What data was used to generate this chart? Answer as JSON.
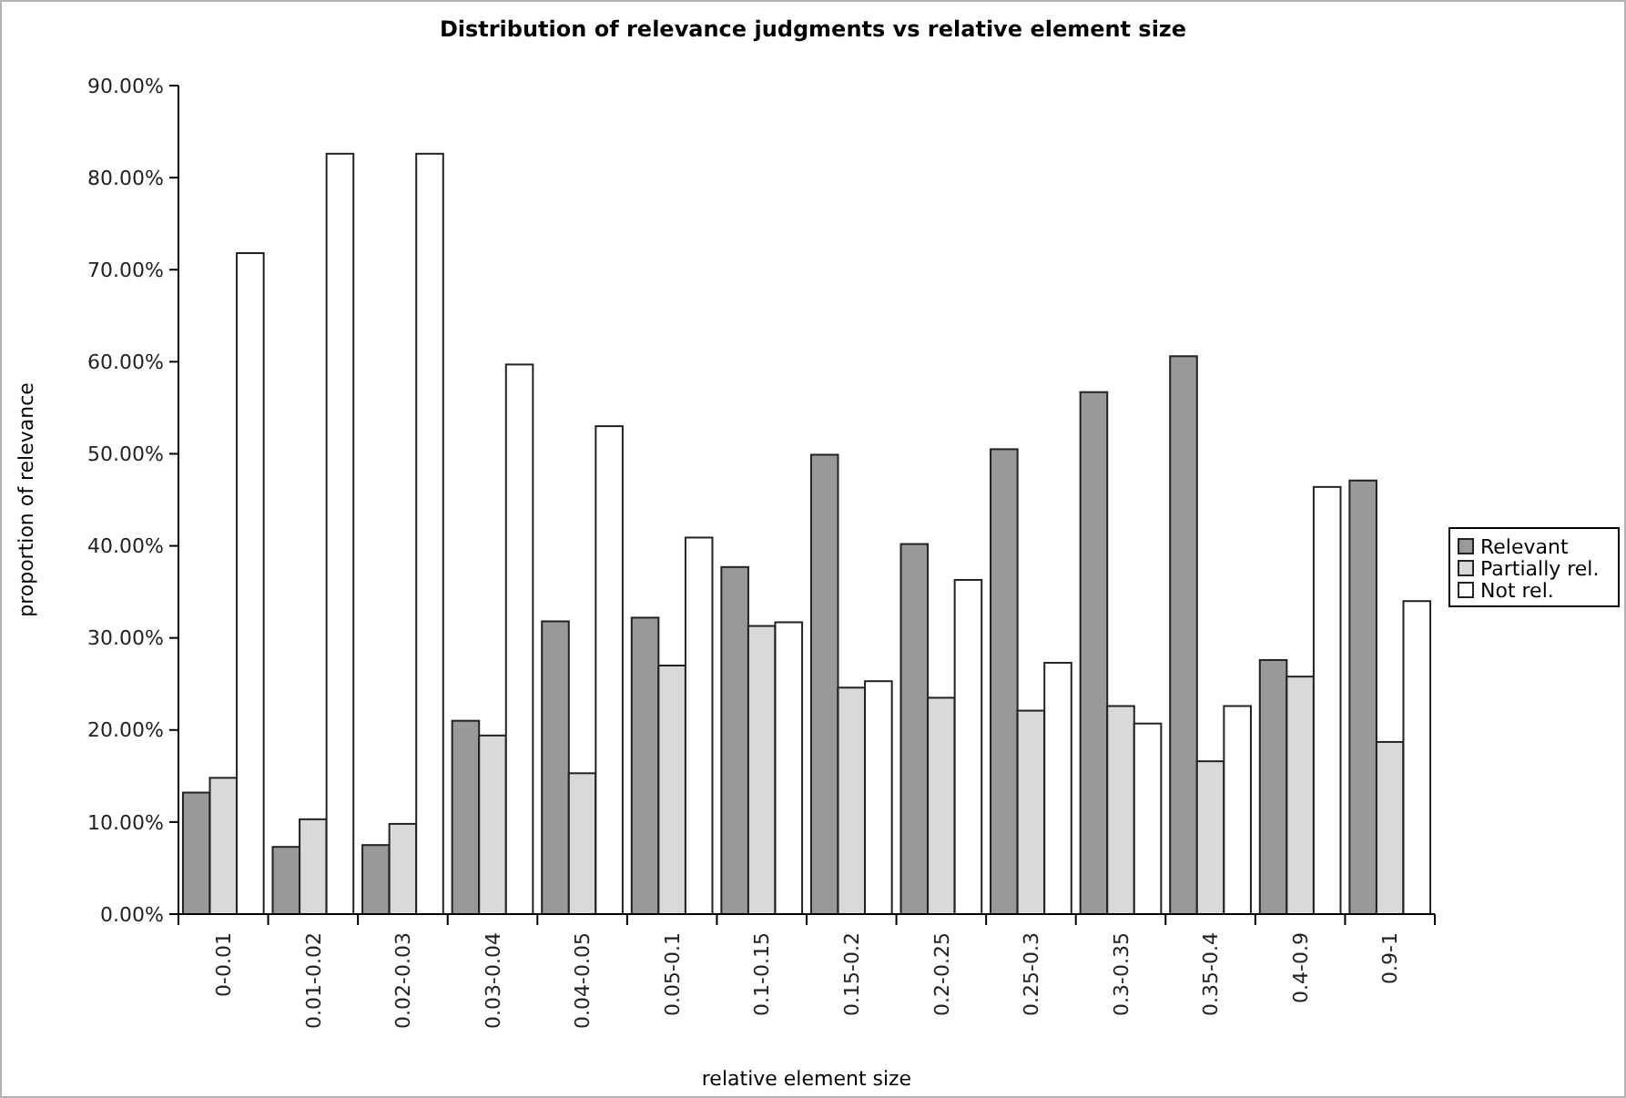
{
  "chart_data": {
    "type": "bar",
    "title": "Distribution of relevance judgments vs relative element size",
    "xlabel": "relative element size",
    "ylabel": "proportion of relevance",
    "categories": [
      "0-0.01",
      "0.01-0.02",
      "0.02-0.03",
      "0.03-0.04",
      "0.04-0.05",
      "0.05-0.1",
      "0.1-0.15",
      "0.15-0.2",
      "0.2-0.25",
      "0.25-0.3",
      "0.3-0.35",
      "0.35-0.4",
      "0.4-0.9",
      "0.9-1"
    ],
    "series": [
      {
        "name": "Relevant",
        "color": "#999999",
        "values": [
          13.2,
          7.3,
          7.5,
          21,
          31.8,
          32.2,
          37.7,
          49.9,
          40.2,
          50.5,
          56.7,
          60.6,
          27.6,
          47.1
        ]
      },
      {
        "name": "Partially rel.",
        "color": "#d9d9d9",
        "values": [
          14.8,
          10.3,
          9.8,
          19.4,
          15.3,
          27,
          31.3,
          24.6,
          23.5,
          22.1,
          22.6,
          16.6,
          25.8,
          18.7
        ]
      },
      {
        "name": "Not rel.",
        "color": "#ffffff",
        "values": [
          71.8,
          82.6,
          82.6,
          59.7,
          53,
          40.9,
          31.7,
          25.3,
          36.3,
          27.3,
          20.7,
          22.6,
          46.4,
          34
        ]
      }
    ],
    "ylim": [
      0,
      90
    ],
    "yticks": [
      {
        "value": 0,
        "label": "0.00%"
      },
      {
        "value": 10,
        "label": "10.00%"
      },
      {
        "value": 20,
        "label": "20.00%"
      },
      {
        "value": 30,
        "label": "30.00%"
      },
      {
        "value": 40,
        "label": "40.00%"
      },
      {
        "value": 50,
        "label": "50.00%"
      },
      {
        "value": 60,
        "label": "60.00%"
      },
      {
        "value": 70,
        "label": "70.00%"
      },
      {
        "value": 80,
        "label": "80.00%"
      },
      {
        "value": 90,
        "label": "90.00%"
      }
    ],
    "grid": false,
    "legend": "right"
  }
}
